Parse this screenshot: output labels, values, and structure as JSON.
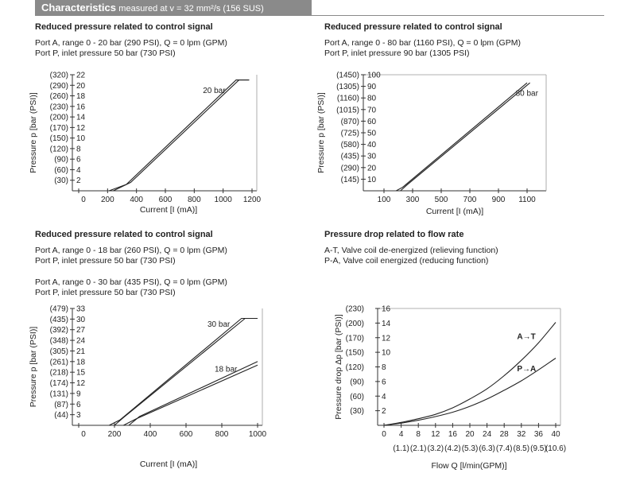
{
  "header": {
    "title": "Characteristics",
    "subtitle": "measured at v = 32 mm²/s (156 SUS)"
  },
  "sections": {
    "s1": {
      "title": "Reduced pressure related to control signal",
      "line1": "Port A, range 0 - 20 bar (290 PSI),  Q = 0 lpm (GPM)",
      "line2": "Port P, inlet pressure 50 bar (730 PSI)"
    },
    "s2": {
      "title": "Reduced pressure related to control signal",
      "line1": "Port A, range 0 - 80 bar (1160 PSI),  Q = 0 lpm (GPM)",
      "line2": "Port P, inlet pressure 90 bar (1305 PSI)"
    },
    "s3": {
      "title": "Reduced pressure related to control signal",
      "line1": "Port A, range 0 - 18 bar (260 PSI),  Q = 0 lpm (GPM)",
      "line2": "Port P, inlet pressure 50 bar (730 PSI)",
      "line3": "Port A, range 0 - 30 bar (435 PSI),  Q = 0 lpm (GPM)",
      "line4": "Port P, inlet pressure 50 bar (730 PSI)"
    },
    "s4": {
      "title": "Pressure drop related to flow rate",
      "line1": "A-T, Valve coil de-energized (relieving function)",
      "line2": "P-A, Valve coil energized (reducing function)"
    }
  },
  "chart_data": [
    {
      "type": "line",
      "ylabel": "Pressure p [bar (PSI)]",
      "xlabel": "Current [I (mA)]",
      "xlim": [
        0,
        1200
      ],
      "ylim": [
        0,
        22
      ],
      "x_ticks": [
        0,
        200,
        400,
        600,
        800,
        1000,
        1200
      ],
      "x_tick_labels": [
        "0",
        "200",
        "400",
        "600",
        "800",
        "1000",
        "1200"
      ],
      "y_ticks": [
        2,
        4,
        6,
        8,
        10,
        12,
        14,
        16,
        18,
        20,
        22
      ],
      "y_tick_labels": [
        "2",
        "4",
        "6",
        "8",
        "10",
        "12",
        "14",
        "16",
        "18",
        "20",
        "22"
      ],
      "y2_tick_labels": [
        "(30)",
        "(60)",
        "(90)",
        "(120)",
        "(150)",
        "(170)",
        "(200)",
        "(230)",
        "(260)",
        "(290)",
        "(320)"
      ],
      "series": [
        {
          "name": "20 bar",
          "label_at": [
            860,
            18.5
          ],
          "lines": [
            {
              "x": [
                240,
                360,
                1110,
                1180
              ],
              "y": [
                0,
                1.6,
                21,
                21
              ]
            },
            {
              "x": [
                210,
                330,
                1090,
                1180
              ],
              "y": [
                0,
                1.2,
                21,
                21
              ]
            }
          ]
        }
      ]
    },
    {
      "type": "line",
      "ylabel": "Pressure p [bar (PSI)]",
      "xlabel": "Current [I (mA)]",
      "xlim": [
        0,
        1200
      ],
      "ylim": [
        0,
        100
      ],
      "x_ticks": [
        100,
        300,
        500,
        700,
        900,
        1100
      ],
      "x_tick_labels": [
        "100",
        "300",
        "500",
        "700",
        "900",
        "1100"
      ],
      "y_ticks": [
        10,
        20,
        30,
        40,
        50,
        60,
        70,
        80,
        90,
        100
      ],
      "y_tick_labels": [
        "10",
        "20",
        "30",
        "40",
        "50",
        "60",
        "70",
        "80",
        "90",
        "100"
      ],
      "y2_tick_labels": [
        "(145)",
        "(290)",
        "(435)",
        "(580)",
        "(725)",
        "(870)",
        "(1015)",
        "(1160)",
        "(1305)",
        "(1450)"
      ],
      "series": [
        {
          "name": "80 bar",
          "label_at": [
            1020,
            82
          ],
          "lines": [
            {
              "x": [
                215,
                260,
                1120
              ],
              "y": [
                0,
                5,
                93
              ]
            },
            {
              "x": [
                185,
                230,
                1100
              ],
              "y": [
                0,
                3,
                93
              ]
            }
          ]
        }
      ]
    },
    {
      "type": "line",
      "ylabel": "Pressure p [bar (PSI)]",
      "xlabel": "Current [I (mA)]",
      "xlim": [
        0,
        1000
      ],
      "ylim": [
        0,
        33
      ],
      "x_ticks": [
        0,
        200,
        400,
        600,
        800,
        1000
      ],
      "x_tick_labels": [
        "0",
        "200",
        "400",
        "600",
        "800",
        "1000"
      ],
      "y_ticks": [
        3,
        6,
        9,
        12,
        15,
        18,
        21,
        24,
        27,
        30,
        33
      ],
      "y_tick_labels": [
        "3",
        "6",
        "9",
        "12",
        "15",
        "18",
        "21",
        "24",
        "27",
        "30",
        "33"
      ],
      "y2_tick_labels": [
        "(44)",
        "(87)",
        "(131)",
        "(174)",
        "(218)",
        "(261)",
        "(305)",
        "(348)",
        "(392)",
        "(435)",
        "(479)"
      ],
      "series": [
        {
          "name": "30 bar",
          "label_at": [
            720,
            27.8
          ],
          "lines": [
            {
              "x": [
                200,
                250,
                930,
                1000
              ],
              "y": [
                0,
                2.2,
                30.2,
                30.2
              ]
            },
            {
              "x": [
                170,
                230,
                910,
                1000
              ],
              "y": [
                0,
                1.5,
                30.2,
                30.2
              ]
            }
          ]
        },
        {
          "name": "18 bar",
          "label_at": [
            760,
            15.2
          ],
          "lines": [
            {
              "x": [
                280,
                340,
                1000
              ],
              "y": [
                0,
                2.5,
                18
              ]
            },
            {
              "x": [
                250,
                320,
                1000
              ],
              "y": [
                0,
                1.8,
                17
              ]
            }
          ]
        }
      ]
    },
    {
      "type": "line",
      "ylabel": "Pressure drop Δp [bar (PSI)]",
      "xlabel": "Flow Q [l/min(GPM)]",
      "xlim": [
        0,
        40
      ],
      "ylim": [
        0,
        16
      ],
      "x_ticks": [
        0,
        4,
        8,
        12,
        16,
        20,
        24,
        28,
        32,
        36,
        40
      ],
      "x_tick_labels": [
        "0",
        "4",
        "8",
        "12",
        "16",
        "20",
        "24",
        "28",
        "32",
        "36",
        "40"
      ],
      "x2_tick_labels": [
        "(1.1)",
        "(2.1)",
        "(3.2)",
        "(4.2)",
        "(5.3)",
        "(6.3)",
        "(7.4)",
        "(8.5)",
        "(9.5)",
        "(10.6)"
      ],
      "y_ticks": [
        2,
        4,
        6,
        8,
        10,
        12,
        14,
        16
      ],
      "y_tick_labels": [
        "2",
        "4",
        "6",
        "8",
        "10",
        "12",
        "14",
        "16"
      ],
      "y2_tick_labels": [
        "(30)",
        "(60)",
        "(90)",
        "(120)",
        "(150)",
        "(170)",
        "(200)",
        "(230)"
      ],
      "series": [
        {
          "name": "A→T",
          "label_at": [
            31,
            11.8
          ],
          "x": [
            0,
            4,
            8,
            12,
            16,
            20,
            24,
            28,
            32,
            36,
            40
          ],
          "y": [
            0,
            0.4,
            0.9,
            1.5,
            2.4,
            3.6,
            5.0,
            6.8,
            8.9,
            11.3,
            14.1
          ]
        },
        {
          "name": "P→A",
          "label_at": [
            31,
            7.4
          ],
          "x": [
            0,
            4,
            8,
            12,
            16,
            20,
            24,
            28,
            32,
            36,
            40
          ],
          "y": [
            0,
            0.3,
            0.7,
            1.2,
            1.8,
            2.6,
            3.6,
            4.8,
            6.1,
            7.6,
            9.2
          ]
        }
      ]
    }
  ]
}
